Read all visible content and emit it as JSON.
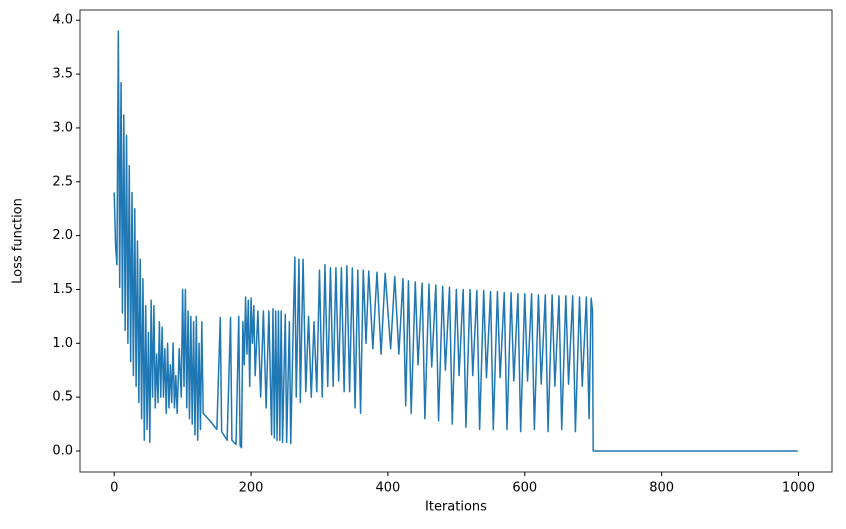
{
  "chart_data": {
    "type": "line",
    "xlabel": "Iterations",
    "ylabel": "Loss function",
    "color": "#1f77b4",
    "xlim": [
      -50,
      1049
    ],
    "ylim": [
      -0.195,
      4.095
    ],
    "xticks": [
      0,
      200,
      400,
      600,
      800,
      1000
    ],
    "yticks": [
      {
        "value": 0,
        "label": "0.0"
      },
      {
        "value": 0.5,
        "label": "0.5"
      },
      {
        "value": 1,
        "label": "1.0"
      },
      {
        "value": 1.5,
        "label": "1.5"
      },
      {
        "value": 2,
        "label": "2.0"
      },
      {
        "value": 2.5,
        "label": "2.5"
      },
      {
        "value": 3,
        "label": "3.0"
      },
      {
        "value": 3.5,
        "label": "3.5"
      },
      {
        "value": 4,
        "label": "4.0"
      }
    ],
    "x": [
      0,
      2,
      4,
      6,
      8,
      10,
      12,
      14,
      16,
      18,
      20,
      22,
      24,
      26,
      28,
      30,
      32,
      34,
      36,
      38,
      40,
      42,
      44,
      46,
      48,
      50,
      52,
      54,
      56,
      58,
      60,
      62,
      64,
      66,
      68,
      70,
      72,
      74,
      76,
      78,
      80,
      82,
      84,
      86,
      88,
      90,
      92,
      95,
      98,
      100,
      102,
      104,
      106,
      108,
      110,
      112,
      114,
      116,
      118,
      120,
      122,
      124,
      126,
      128,
      130,
      140,
      150,
      155,
      157,
      165,
      170,
      172,
      178,
      182,
      184,
      186,
      188,
      190,
      192,
      194,
      196,
      198,
      200,
      202,
      204,
      206,
      210,
      214,
      218,
      222,
      226,
      230,
      232,
      234,
      236,
      238,
      240,
      242,
      244,
      246,
      250,
      252,
      256,
      258,
      262,
      264,
      266,
      270,
      272,
      276,
      280,
      284,
      288,
      292,
      296,
      300,
      304,
      308,
      312,
      316,
      320,
      324,
      328,
      332,
      336,
      340,
      344,
      348,
      352,
      356,
      360,
      364,
      368,
      372,
      378,
      384,
      390,
      396,
      404,
      410,
      416,
      422,
      426,
      430,
      434,
      440,
      444,
      450,
      454,
      460,
      464,
      470,
      474,
      480,
      484,
      490,
      494,
      500,
      504,
      510,
      514,
      520,
      524,
      530,
      534,
      540,
      544,
      550,
      554,
      560,
      564,
      570,
      574,
      580,
      584,
      590,
      594,
      600,
      604,
      610,
      614,
      620,
      624,
      630,
      634,
      640,
      644,
      650,
      654,
      660,
      664,
      670,
      674,
      680,
      684,
      690,
      694,
      697,
      699,
      700,
      999
    ],
    "values": [
      2.4,
      1.9,
      1.73,
      3.9,
      1.52,
      3.42,
      1.28,
      3.12,
      1.12,
      2.93,
      1.0,
      2.65,
      0.83,
      2.4,
      0.7,
      2.25,
      0.6,
      1.95,
      0.45,
      1.78,
      0.3,
      1.6,
      0.1,
      1.35,
      0.2,
      1.1,
      0.08,
      1.4,
      0.5,
      1.35,
      0.4,
      0.9,
      0.45,
      1.2,
      0.5,
      1.15,
      0.5,
      0.95,
      0.35,
      1.0,
      0.4,
      0.8,
      0.45,
      1.0,
      0.4,
      0.7,
      0.35,
      0.95,
      0.5,
      1.5,
      0.6,
      1.5,
      0.4,
      1.3,
      0.3,
      1.25,
      0.25,
      1.2,
      0.15,
      1.25,
      0.1,
      1.0,
      0.2,
      1.2,
      0.35,
      0.28,
      0.2,
      1.24,
      0.18,
      0.1,
      1.24,
      0.1,
      0.06,
      1.25,
      0.05,
      0.03,
      1.2,
      0.8,
      1.43,
      0.9,
      1.4,
      0.6,
      1.42,
      1.0,
      1.35,
      0.7,
      1.3,
      0.5,
      1.3,
      0.4,
      1.3,
      0.15,
      1.32,
      0.12,
      1.3,
      0.1,
      1.3,
      0.1,
      1.3,
      0.08,
      1.27,
      0.08,
      1.2,
      0.07,
      1.26,
      1.8,
      0.5,
      1.78,
      0.45,
      1.78,
      0.55,
      1.25,
      0.5,
      1.2,
      0.55,
      1.68,
      0.5,
      1.73,
      0.6,
      1.7,
      0.6,
      1.7,
      0.65,
      1.7,
      0.55,
      1.72,
      0.55,
      1.7,
      0.4,
      1.68,
      0.35,
      1.68,
      1.0,
      1.67,
      0.95,
      1.66,
      0.9,
      1.65,
      0.95,
      1.62,
      0.9,
      1.6,
      0.42,
      1.58,
      0.35,
      1.57,
      0.8,
      1.56,
      0.3,
      1.55,
      0.78,
      1.54,
      0.28,
      1.53,
      0.75,
      1.52,
      0.25,
      1.5,
      0.7,
      1.5,
      0.22,
      1.5,
      0.7,
      1.49,
      0.2,
      1.49,
      0.68,
      1.48,
      0.2,
      1.48,
      0.68,
      1.47,
      0.2,
      1.47,
      0.65,
      1.46,
      0.18,
      1.46,
      0.65,
      1.46,
      0.2,
      1.45,
      0.62,
      1.45,
      0.18,
      1.45,
      0.6,
      1.44,
      0.2,
      1.44,
      0.62,
      1.44,
      0.18,
      1.43,
      0.6,
      1.43,
      0.3,
      1.42,
      1.3,
      0.0,
      0.0
    ]
  }
}
